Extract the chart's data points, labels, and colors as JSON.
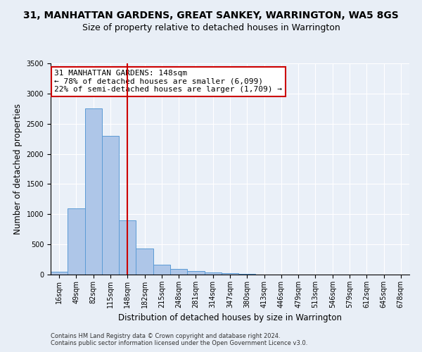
{
  "title": "31, MANHATTAN GARDENS, GREAT SANKEY, WARRINGTON, WA5 8GS",
  "subtitle": "Size of property relative to detached houses in Warrington",
  "xlabel": "Distribution of detached houses by size in Warrington",
  "ylabel": "Number of detached properties",
  "categories": [
    "16sqm",
    "49sqm",
    "82sqm",
    "115sqm",
    "148sqm",
    "182sqm",
    "215sqm",
    "248sqm",
    "281sqm",
    "314sqm",
    "347sqm",
    "380sqm",
    "413sqm",
    "446sqm",
    "479sqm",
    "513sqm",
    "546sqm",
    "579sqm",
    "612sqm",
    "645sqm",
    "678sqm"
  ],
  "values": [
    50,
    1100,
    2750,
    2300,
    900,
    430,
    160,
    90,
    55,
    40,
    20,
    10,
    5,
    2,
    1,
    0,
    0,
    0,
    0,
    0,
    0
  ],
  "bar_color": "#aec6e8",
  "bar_edge_color": "#5b9bd5",
  "vline_x_idx": 4,
  "vline_color": "#cc0000",
  "annotation_text": "31 MANHATTAN GARDENS: 148sqm\n← 78% of detached houses are smaller (6,099)\n22% of semi-detached houses are larger (1,709) →",
  "annotation_box_color": "#ffffff",
  "annotation_box_edge": "#cc0000",
  "ylim": [
    0,
    3500
  ],
  "yticks": [
    0,
    500,
    1000,
    1500,
    2000,
    2500,
    3000,
    3500
  ],
  "footer1": "Contains HM Land Registry data © Crown copyright and database right 2024.",
  "footer2": "Contains public sector information licensed under the Open Government Licence v3.0.",
  "bg_color": "#e8eef6",
  "plot_bg_color": "#eaf0f8",
  "title_fontsize": 10,
  "subtitle_fontsize": 9,
  "tick_fontsize": 7,
  "ylabel_fontsize": 8.5,
  "xlabel_fontsize": 8.5,
  "annotation_fontsize": 8,
  "footer_fontsize": 6
}
